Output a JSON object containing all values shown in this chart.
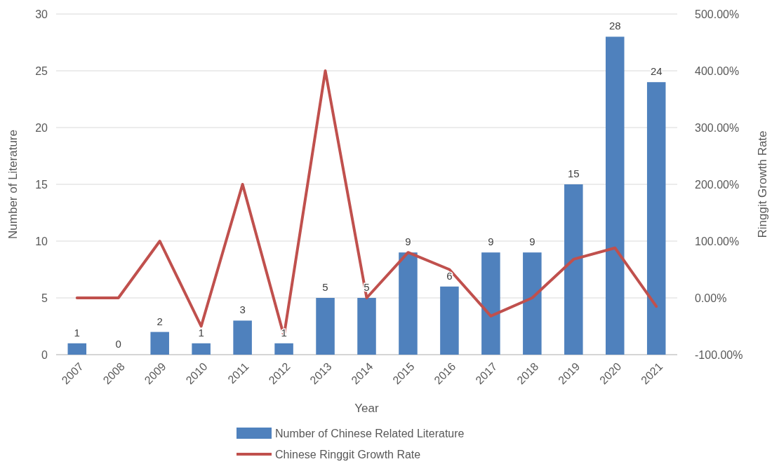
{
  "chart_data": {
    "type": "bar",
    "xlabel": "Year",
    "ylabel": "Number of Literature",
    "y2label": "Ringgit Growth Rate",
    "categories": [
      "2007",
      "2008",
      "2009",
      "2010",
      "2011",
      "2012",
      "2013",
      "2014",
      "2015",
      "2016",
      "2017",
      "2018",
      "2019",
      "2020",
      "2021"
    ],
    "series": [
      {
        "name": "Number of Chinese Related Literature",
        "color": "#4f81bd",
        "values": [
          1,
          0,
          2,
          1,
          3,
          1,
          5,
          5,
          9,
          6,
          9,
          9,
          15,
          28,
          24
        ],
        "value_labels": [
          "1",
          "0",
          "2",
          "1",
          "3",
          "1",
          "5",
          "5",
          "9",
          "6",
          "9",
          "9",
          "15",
          "28",
          "24"
        ]
      },
      {
        "name": "Chinese Ringgit Growth Rate",
        "type": "line",
        "axis": "y2",
        "color": "#c0504d",
        "values": [
          0,
          0,
          100,
          -50,
          200,
          -67,
          400,
          0,
          80,
          50,
          -32,
          0,
          68,
          88,
          -15
        ]
      }
    ],
    "ylim": [
      0,
      30
    ],
    "yticks": [
      0,
      5,
      10,
      15,
      20,
      25,
      30
    ],
    "y2lim": [
      -100,
      500
    ],
    "y2ticks": [
      {
        "value": -100,
        "label": "-100.00%"
      },
      {
        "value": 0,
        "label": "0.00%"
      },
      {
        "value": 100,
        "label": "100.00%"
      },
      {
        "value": 200,
        "label": "200.00%"
      },
      {
        "value": 300,
        "label": "300.00%"
      },
      {
        "value": 400,
        "label": "400.00%"
      },
      {
        "value": 500,
        "label": "500.00%"
      }
    ],
    "grid": "y",
    "legend": "bottom",
    "marker": "none",
    "line_style": "solid"
  }
}
